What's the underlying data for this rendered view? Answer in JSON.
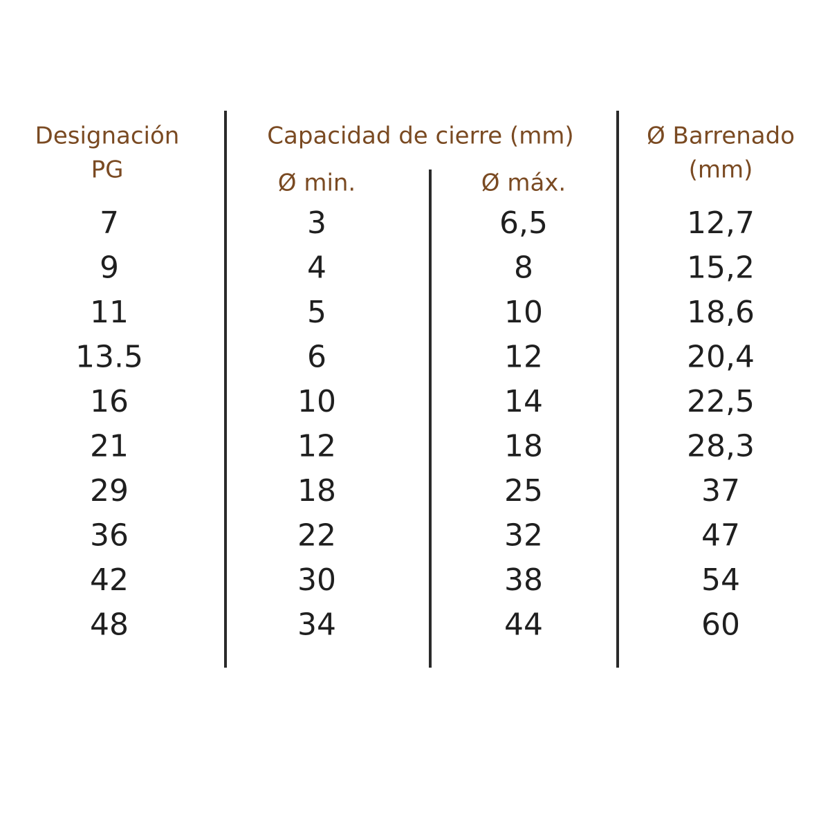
{
  "table": {
    "headers": [
      [
        "Designación",
        "PG"
      ],
      [
        "Capacidad de cierre (mm)"
      ],
      [
        "Ø Barrenado",
        "(mm)"
      ]
    ],
    "subheaders": [
      "Ø min.",
      "Ø máx."
    ],
    "rows": [
      [
        "7",
        "3",
        "6,5",
        "12,7"
      ],
      [
        "9",
        "4",
        "8",
        "15,2"
      ],
      [
        "11",
        "5",
        "10",
        "18,6"
      ],
      [
        "13.5",
        "6",
        "12",
        "20,4"
      ],
      [
        "16",
        "10",
        "14",
        "22,5"
      ],
      [
        "21",
        "12",
        "18",
        "28,3"
      ],
      [
        "29",
        "18",
        "25",
        "37"
      ],
      [
        "36",
        "22",
        "32",
        "47"
      ],
      [
        "42",
        "30",
        "38",
        "54"
      ],
      [
        "48",
        "34",
        "44",
        "60"
      ]
    ]
  }
}
